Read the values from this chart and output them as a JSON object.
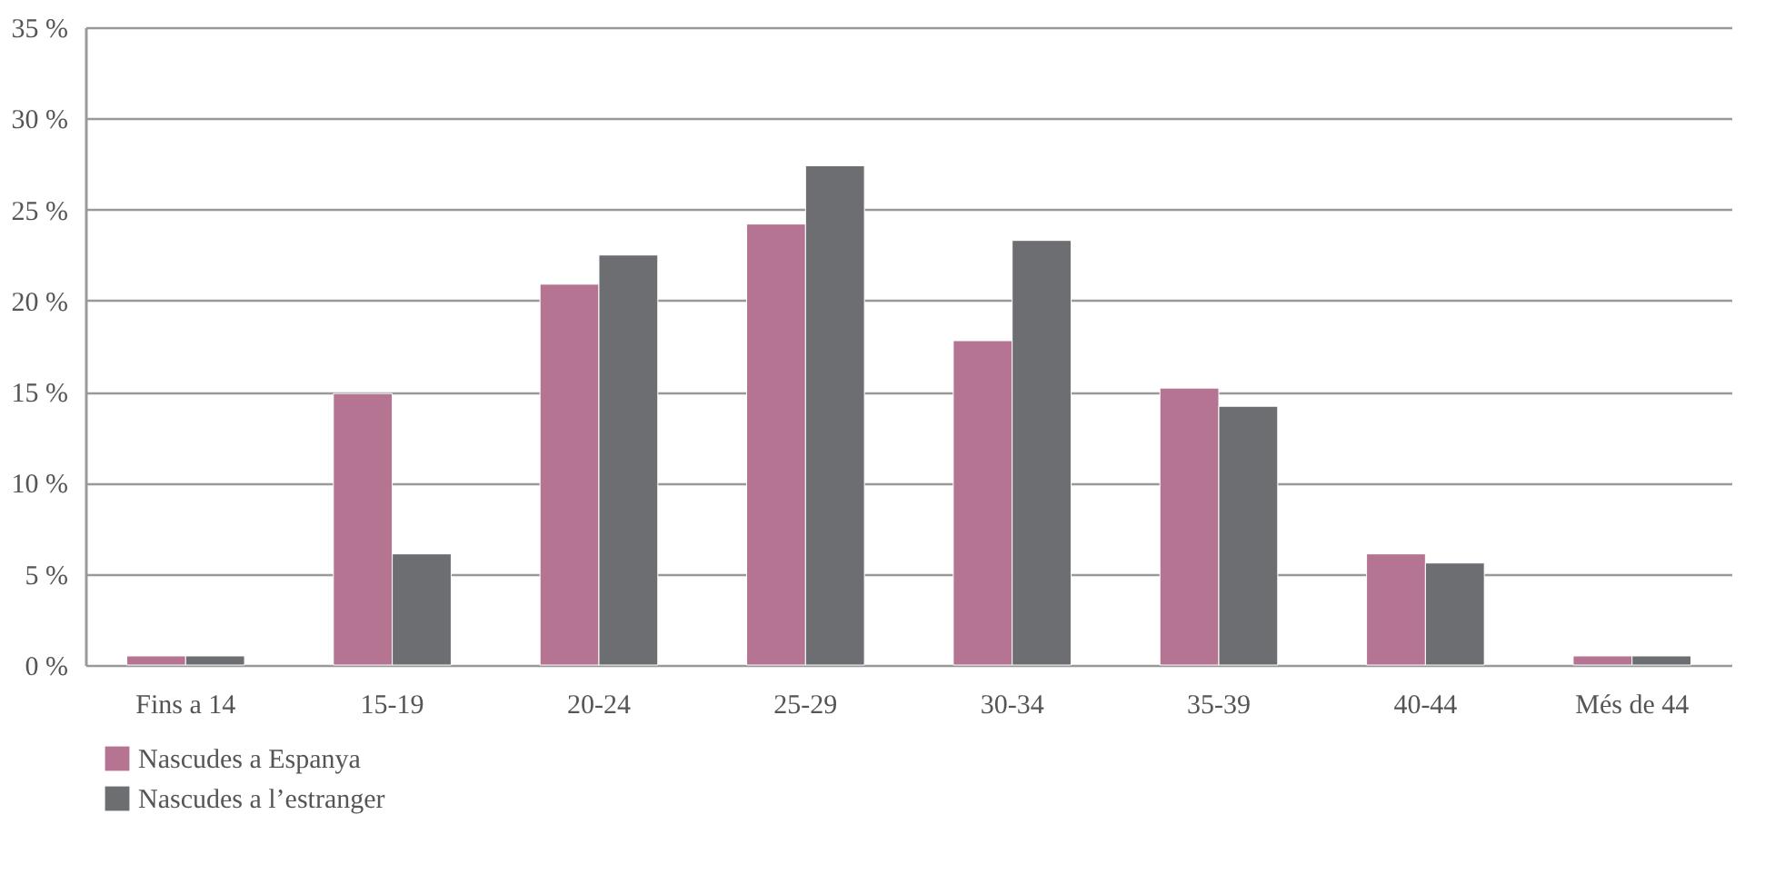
{
  "chart_data": {
    "type": "bar",
    "categories": [
      "Fins a 14",
      "15-19",
      "20-24",
      "25-29",
      "30-34",
      "35-39",
      "40-44",
      "Més de 44"
    ],
    "series": [
      {
        "name": "Nascudes a Espanya",
        "color": "#b57592",
        "values": [
          0.5,
          14.9,
          20.9,
          24.2,
          17.8,
          15.2,
          6.1,
          0.5
        ]
      },
      {
        "name": "Nascudes a l’estranger",
        "color": "#6d6e72",
        "values": [
          0.5,
          6.1,
          22.5,
          27.4,
          23.3,
          14.2,
          5.6,
          0.5
        ]
      }
    ],
    "ylim": [
      0,
      35
    ],
    "yticks": [
      {
        "value": 0,
        "label": "0 %"
      },
      {
        "value": 5,
        "label": "5 %"
      },
      {
        "value": 10,
        "label": "10 %"
      },
      {
        "value": 15,
        "label": "15 %"
      },
      {
        "value": 20,
        "label": "20 %"
      },
      {
        "value": 25,
        "label": "25 %"
      },
      {
        "value": 30,
        "label": "30 %"
      },
      {
        "value": 35,
        "label": "35 %"
      }
    ],
    "grid": "y",
    "legend": "bottom left"
  }
}
